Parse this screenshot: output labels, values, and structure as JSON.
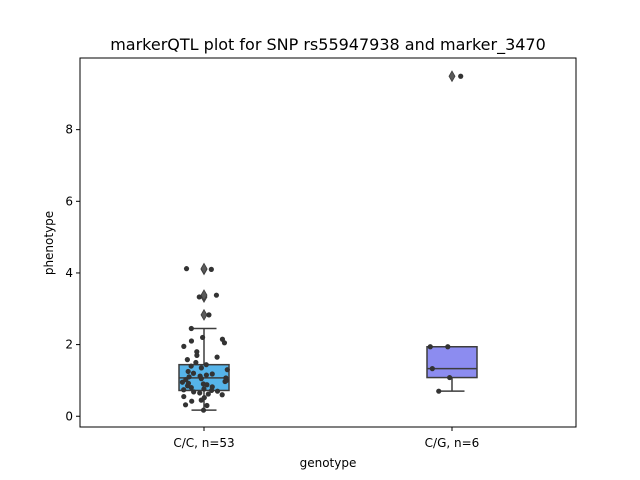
{
  "chart_data": {
    "type": "box",
    "title": "markerQTL plot for SNP rs55947938 and marker_3470",
    "xlabel": "genotype",
    "ylabel": "phenotype",
    "ylim": [
      -0.3,
      10.0
    ],
    "yticks": [
      0,
      2,
      4,
      6,
      8
    ],
    "grid": false,
    "legend": "none",
    "categories": [
      "C/C, n=53",
      "C/G, n=6"
    ],
    "boxes": [
      {
        "category": "C/C, n=53",
        "color": "#56b4e9",
        "whisker_low": 0.17,
        "q1": 0.72,
        "median": 1.07,
        "q3": 1.44,
        "whisker_high": 2.45,
        "outliers": [
          2.83,
          3.33,
          3.38,
          4.1,
          4.12
        ]
      },
      {
        "category": "C/G, n=6",
        "color": "#8c8cf0",
        "whisker_low": 0.7,
        "q1": 1.08,
        "median": 1.33,
        "q3": 1.94,
        "whisker_high": 1.94,
        "outliers": [
          9.49
        ]
      }
    ],
    "points": [
      {
        "category": "C/C, n=53",
        "values": [
          0.17,
          0.3,
          0.32,
          0.42,
          0.45,
          0.52,
          0.55,
          0.6,
          0.62,
          0.65,
          0.68,
          0.7,
          0.72,
          0.74,
          0.76,
          0.8,
          0.82,
          0.85,
          0.88,
          0.9,
          0.92,
          0.95,
          0.97,
          1.0,
          1.02,
          1.05,
          1.07,
          1.1,
          1.12,
          1.15,
          1.18,
          1.2,
          1.25,
          1.3,
          1.35,
          1.4,
          1.44,
          1.5,
          1.58,
          1.65,
          1.7,
          1.8,
          1.95,
          2.05,
          2.1,
          2.15,
          2.2,
          2.45,
          2.83,
          3.33,
          3.38,
          4.1,
          4.12
        ]
      },
      {
        "category": "C/G, n=6",
        "values": [
          0.7,
          1.08,
          1.33,
          1.94,
          1.94,
          9.49
        ]
      }
    ]
  }
}
